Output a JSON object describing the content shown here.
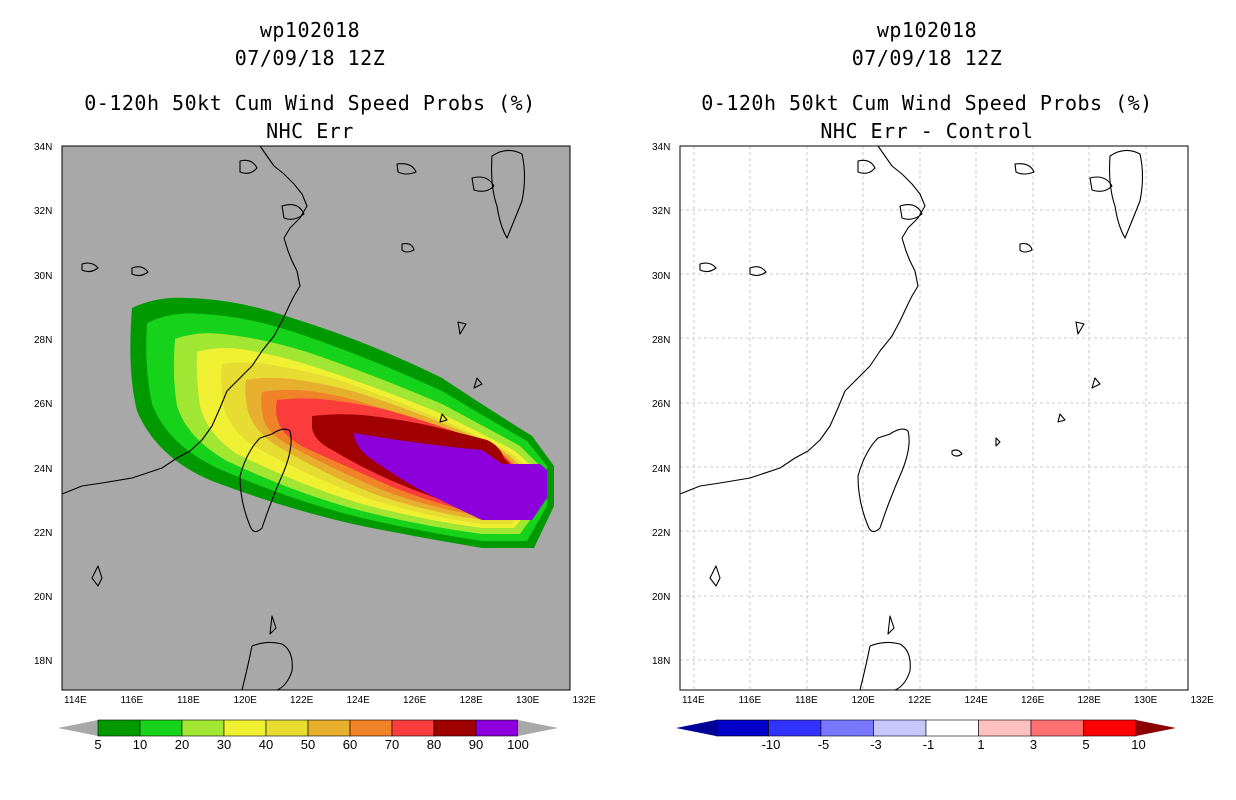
{
  "left_panel": {
    "storm_id": "wp102018",
    "datetime": "07/09/18 12Z",
    "product": "0-120h 50kt Cum Wind Speed Probs (%)",
    "subtitle": "NHC Err",
    "legend": {
      "labels": [
        "5",
        "10",
        "20",
        "30",
        "40",
        "50",
        "60",
        "70",
        "80",
        "90",
        "100"
      ],
      "colors": [
        "#009a00",
        "#16d21a",
        "#a0e632",
        "#f0f032",
        "#e6dc32",
        "#e6af2d",
        "#f08228",
        "#fa3c3c",
        "#a00000",
        "#8c00dc"
      ],
      "arrow_color": "#a8a8a8"
    },
    "background_color": "#a8a8a8"
  },
  "right_panel": {
    "storm_id": "wp102018",
    "datetime": "07/09/18 12Z",
    "product": "0-120h 50kt Cum Wind Speed Probs (%)",
    "subtitle": "NHC Err - Control",
    "legend": {
      "labels": [
        "-10",
        "-5",
        "-3",
        "-1",
        "1",
        "3",
        "5",
        "10"
      ],
      "colors": [
        "#0000c8",
        "#3232ff",
        "#7878ff",
        "#c8c8ff",
        "#ffffff",
        "#ffc0c0",
        "#ff7070",
        "#ff0000"
      ],
      "left_arrow_color": "#000096",
      "right_arrow_color": "#8c0000"
    }
  },
  "map": {
    "lat_labels": [
      "34N",
      "32N",
      "30N",
      "28N",
      "26N",
      "24N",
      "22N",
      "20N",
      "18N"
    ],
    "lon_labels": [
      "114E",
      "116E",
      "118E",
      "120E",
      "122E",
      "124E",
      "126E",
      "128E",
      "130E",
      "132E"
    ]
  }
}
